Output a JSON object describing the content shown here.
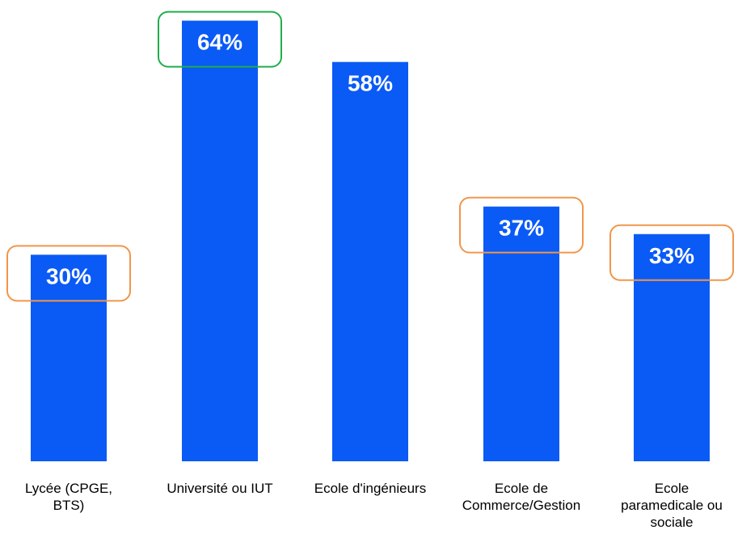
{
  "colors": {
    "bar": "#0A5AF5",
    "highlight_green": "#1FAE4B",
    "highlight_orange": "#F0964B",
    "background": "#FFFFFF"
  },
  "chart_data": {
    "type": "bar",
    "categories": [
      [
        "Lycée (CPGE,",
        "BTS)"
      ],
      [
        "Université ou IUT"
      ],
      [
        "Ecole d'ingénieurs"
      ],
      [
        "Ecole de",
        "Commerce/Gestion"
      ],
      [
        "Ecole",
        "paramedicale ou",
        "sociale"
      ]
    ],
    "values": [
      30,
      64,
      58,
      37,
      33
    ],
    "value_labels": [
      "30%",
      "64%",
      "58%",
      "37%",
      "33%"
    ],
    "highlights": [
      "orange",
      "green",
      null,
      "orange",
      "orange"
    ],
    "ylim": [
      0,
      67
    ],
    "grid": false,
    "legend": "none"
  }
}
